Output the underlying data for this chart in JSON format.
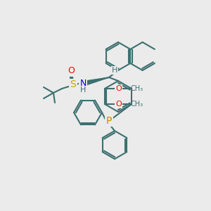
{
  "bg_color": "#ebebeb",
  "bond_color": "#3d7070",
  "bond_width": 1.5,
  "atom_colors": {
    "O": "#ff0000",
    "S": "#ccaa00",
    "N": "#0000ff",
    "P": "#cc8800",
    "C": "#3d7070",
    "H": "#3d7070"
  },
  "font_size": 7,
  "label_font_size": 8
}
